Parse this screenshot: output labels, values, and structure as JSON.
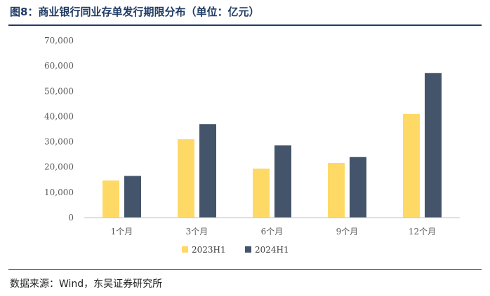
{
  "title": "图8：商业银行同业存单发行期限分布（单位：亿元）",
  "source": "数据来源：Wind，东吴证券研究所",
  "chart_data": {
    "type": "bar",
    "title": "",
    "xlabel": "",
    "ylabel": "",
    "categories": [
      "1个月",
      "3个月",
      "6个月",
      "9个月",
      "12个月"
    ],
    "series": [
      {
        "name": "2023H1",
        "color": "#FFD966",
        "values": [
          14700,
          31000,
          19400,
          21600,
          41000
        ]
      },
      {
        "name": "2024H1",
        "color": "#44546A",
        "values": [
          16500,
          37000,
          28600,
          24000,
          57200
        ]
      }
    ],
    "ylim": [
      0,
      70000
    ],
    "yticks": [
      "0",
      "10,000",
      "20,000",
      "30,000",
      "40,000",
      "50,000",
      "60,000",
      "70,000"
    ],
    "grid": false,
    "legend": "bottom-center"
  }
}
